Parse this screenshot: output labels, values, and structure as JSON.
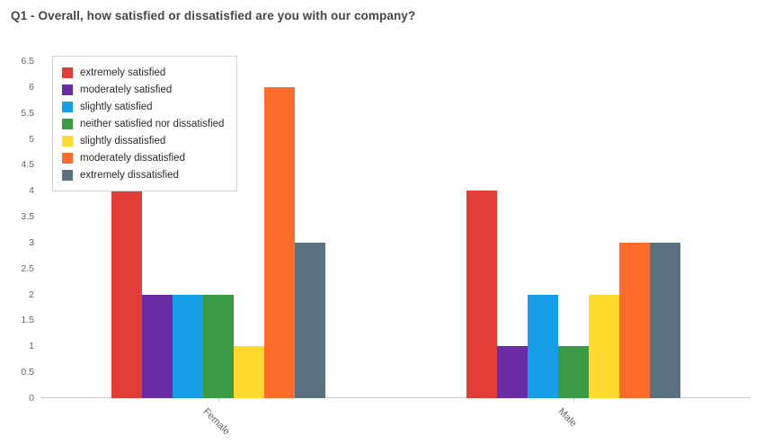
{
  "title": "Q1 - Overall, how satisfied or dissatisfied are you with our company?",
  "chart_data": {
    "type": "bar",
    "categories": [
      "Female",
      "Male"
    ],
    "series": [
      {
        "name": "extremely satisfied",
        "color": "#e03e36",
        "values": [
          4,
          4
        ]
      },
      {
        "name": "moderately satisfied",
        "color": "#6a2ca2",
        "values": [
          2,
          1
        ]
      },
      {
        "name": "slightly satisfied",
        "color": "#189ee9",
        "values": [
          2,
          2
        ]
      },
      {
        "name": "neither satisfied nor dissatisfied",
        "color": "#3b9b44",
        "values": [
          2,
          1
        ]
      },
      {
        "name": "slightly dissatisfied",
        "color": "#fdd82d",
        "values": [
          1,
          2
        ]
      },
      {
        "name": "moderately dissatisfied",
        "color": "#fc6b29",
        "values": [
          6,
          3
        ]
      },
      {
        "name": "extremely dissatisfied",
        "color": "#5a7180",
        "values": [
          3,
          3
        ]
      }
    ],
    "ylim": [
      0,
      6.5
    ],
    "ytick_step": 0.5,
    "grid": false,
    "legend_position": "top-left",
    "axis_color": "#cccccc",
    "tick_label_color": "#666666"
  }
}
